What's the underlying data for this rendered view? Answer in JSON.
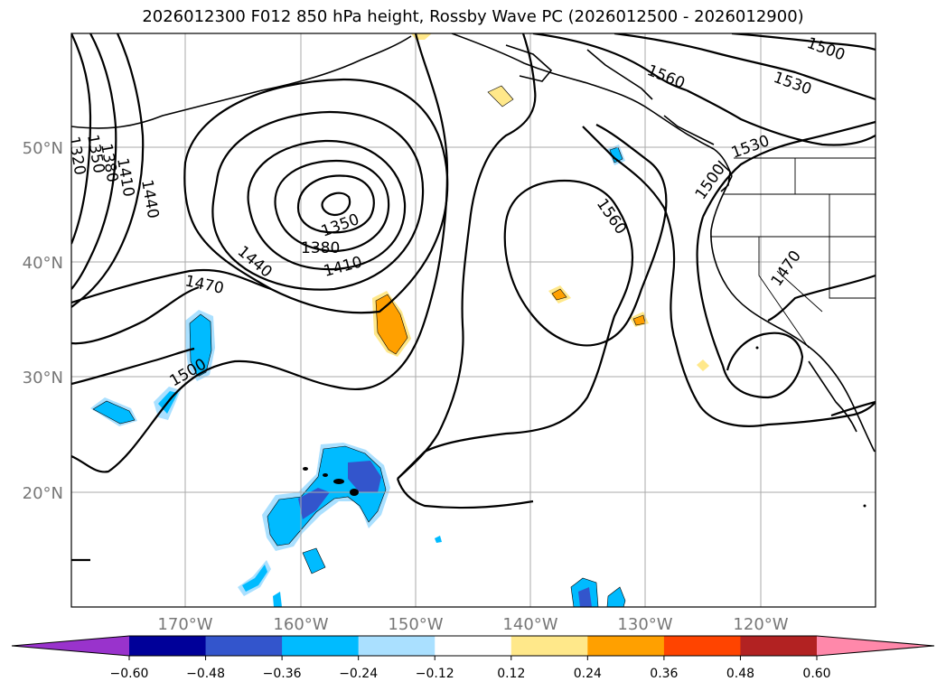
{
  "title": "2026012300 F012 850 hPa height, Rossby Wave PC (2026012500 - 2026012900)",
  "lat_labels": [
    "50°N",
    "40°N",
    "30°N",
    "20°N"
  ],
  "lon_labels": [
    "170°W",
    "160°W",
    "150°W",
    "140°W",
    "130°W",
    "120°W"
  ],
  "contour_labels": [
    "1500",
    "1560",
    "1530",
    "1530",
    "1500",
    "1560",
    "1470",
    "1320",
    "1350",
    "1380",
    "1410",
    "1440",
    "1350",
    "1380",
    "1410",
    "1440",
    "1470",
    "1500"
  ],
  "colorbar": {
    "ticks": [
      "−0.60",
      "−0.48",
      "−0.36",
      "−0.24",
      "−0.12",
      "0.12",
      "0.24",
      "0.36",
      "0.48",
      "0.60"
    ],
    "colors": {
      "under": "#9933cc",
      "bins": [
        "#000099",
        "#3355cc",
        "#00bbff",
        "#aae0ff",
        "#ffffff",
        "#ffe88a",
        "#ffa000",
        "#ff4400",
        "#b22222"
      ],
      "over": "#ff88aa"
    }
  },
  "colors": {
    "negative_fill": "#00bbff",
    "negative_light": "#aae0ff",
    "negative_dark": "#3355cc",
    "positive_fill": "#ffa000",
    "positive_light": "#ffe88a",
    "contour": "#000000",
    "grid": "#aaaaaa"
  }
}
